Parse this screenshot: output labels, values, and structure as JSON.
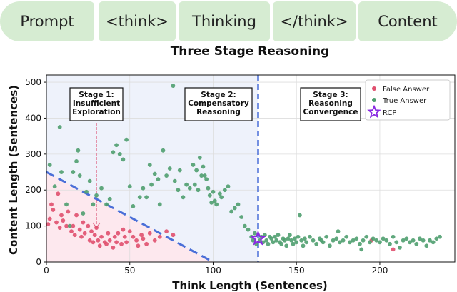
{
  "pipeline": {
    "stages": [
      "Prompt",
      "<think>",
      "Thinking",
      "</think>",
      "Content"
    ]
  },
  "colors": {
    "pill_bg": "#d6ecd2",
    "false_answer": "#e0506e",
    "true_answer": "#4f9e6f",
    "rcp": "#8a2be2",
    "dashed_line": "#4a6fd8",
    "region_low": "#fde8ee",
    "region_mid": "#eef2fb"
  },
  "chart_data": {
    "type": "scatter",
    "title": "Three Stage Reasoning",
    "xlabel": "Think Length (Sentences)",
    "ylabel": "Content Length (Sentences)",
    "xlim": [
      0,
      245
    ],
    "ylim": [
      0,
      520
    ],
    "x_ticks": [
      0,
      50,
      100,
      150,
      200
    ],
    "y_ticks": [
      0,
      100,
      200,
      300,
      400,
      500
    ],
    "grid": true,
    "legend_position": "top-right",
    "legend": [
      "False Answer",
      "True Answer",
      "RCP"
    ],
    "stages": [
      {
        "lines": [
          "Stage 1:",
          "Insufficient",
          "Exploration"
        ]
      },
      {
        "lines": [
          "Stage 2:",
          "Compensatory",
          "Reasoning"
        ]
      },
      {
        "lines": [
          "Stage 3:",
          "Reasoning",
          "Convergence"
        ]
      }
    ],
    "rcp_point": {
      "x": 127,
      "y": 65
    },
    "vertical_line_x": 127,
    "diagonal_line": {
      "x": [
        0,
        100
      ],
      "y": [
        250,
        0
      ]
    },
    "series": [
      {
        "name": "False Answer",
        "points": [
          [
            1,
            105
          ],
          [
            2,
            120
          ],
          [
            3,
            160
          ],
          [
            4,
            145
          ],
          [
            6,
            110
          ],
          [
            7,
            190
          ],
          [
            8,
            95
          ],
          [
            9,
            130
          ],
          [
            10,
            115
          ],
          [
            12,
            100
          ],
          [
            13,
            140
          ],
          [
            15,
            85
          ],
          [
            16,
            100
          ],
          [
            17,
            75
          ],
          [
            18,
            130
          ],
          [
            20,
            90
          ],
          [
            21,
            70
          ],
          [
            22,
            110
          ],
          [
            23,
            80
          ],
          [
            25,
            100
          ],
          [
            26,
            60
          ],
          [
            27,
            85
          ],
          [
            28,
            55
          ],
          [
            29,
            75
          ],
          [
            30,
            95
          ],
          [
            31,
            60
          ],
          [
            32,
            45
          ],
          [
            33,
            70
          ],
          [
            35,
            55
          ],
          [
            36,
            50
          ],
          [
            37,
            80
          ],
          [
            38,
            60
          ],
          [
            40,
            40
          ],
          [
            41,
            70
          ],
          [
            42,
            55
          ],
          [
            43,
            80
          ],
          [
            45,
            50
          ],
          [
            46,
            90
          ],
          [
            47,
            70
          ],
          [
            48,
            55
          ],
          [
            50,
            85
          ],
          [
            52,
            70
          ],
          [
            54,
            60
          ],
          [
            55,
            45
          ],
          [
            57,
            75
          ],
          [
            58,
            65
          ],
          [
            60,
            50
          ],
          [
            62,
            80
          ],
          [
            65,
            60
          ],
          [
            68,
            70
          ],
          [
            72,
            85
          ],
          [
            76,
            75
          ],
          [
            195,
            60
          ],
          [
            208,
            35
          ]
        ]
      },
      {
        "name": "True Answer",
        "points": [
          [
            2,
            270
          ],
          [
            5,
            210
          ],
          [
            8,
            375
          ],
          [
            9,
            250
          ],
          [
            12,
            160
          ],
          [
            14,
            100
          ],
          [
            16,
            250
          ],
          [
            18,
            280
          ],
          [
            19,
            310
          ],
          [
            20,
            240
          ],
          [
            22,
            135
          ],
          [
            24,
            195
          ],
          [
            26,
            225
          ],
          [
            28,
            160
          ],
          [
            30,
            185
          ],
          [
            33,
            205
          ],
          [
            36,
            160
          ],
          [
            38,
            175
          ],
          [
            40,
            305
          ],
          [
            42,
            325
          ],
          [
            44,
            300
          ],
          [
            46,
            285
          ],
          [
            48,
            340
          ],
          [
            50,
            210
          ],
          [
            52,
            155
          ],
          [
            56,
            180
          ],
          [
            58,
            205
          ],
          [
            60,
            180
          ],
          [
            62,
            270
          ],
          [
            63,
            215
          ],
          [
            65,
            245
          ],
          [
            67,
            230
          ],
          [
            68,
            160
          ],
          [
            70,
            310
          ],
          [
            72,
            240
          ],
          [
            74,
            260
          ],
          [
            76,
            490
          ],
          [
            77,
            225
          ],
          [
            79,
            200
          ],
          [
            80,
            255
          ],
          [
            82,
            180
          ],
          [
            84,
            215
          ],
          [
            86,
            205
          ],
          [
            88,
            270
          ],
          [
            89,
            215
          ],
          [
            90,
            255
          ],
          [
            91,
            200
          ],
          [
            92,
            290
          ],
          [
            93,
            240
          ],
          [
            94,
            265
          ],
          [
            95,
            240
          ],
          [
            96,
            230
          ],
          [
            97,
            205
          ],
          [
            98,
            185
          ],
          [
            99,
            165
          ],
          [
            100,
            195
          ],
          [
            101,
            170
          ],
          [
            102,
            160
          ],
          [
            104,
            190
          ],
          [
            105,
            180
          ],
          [
            107,
            200
          ],
          [
            109,
            210
          ],
          [
            111,
            140
          ],
          [
            113,
            150
          ],
          [
            115,
            160
          ],
          [
            117,
            125
          ],
          [
            119,
            100
          ],
          [
            121,
            90
          ],
          [
            123,
            70
          ],
          [
            124,
            60
          ],
          [
            125,
            80
          ],
          [
            126,
            50
          ],
          [
            128,
            60
          ],
          [
            129,
            70
          ],
          [
            130,
            55
          ],
          [
            131,
            75
          ],
          [
            132,
            60
          ],
          [
            133,
            50
          ],
          [
            134,
            70
          ],
          [
            135,
            65
          ],
          [
            136,
            55
          ],
          [
            137,
            70
          ],
          [
            138,
            60
          ],
          [
            139,
            75
          ],
          [
            140,
            55
          ],
          [
            141,
            50
          ],
          [
            142,
            65
          ],
          [
            143,
            60
          ],
          [
            144,
            45
          ],
          [
            145,
            65
          ],
          [
            146,
            75
          ],
          [
            147,
            60
          ],
          [
            148,
            50
          ],
          [
            149,
            65
          ],
          [
            150,
            55
          ],
          [
            151,
            70
          ],
          [
            152,
            130
          ],
          [
            153,
            60
          ],
          [
            154,
            45
          ],
          [
            155,
            65
          ],
          [
            156,
            55
          ],
          [
            158,
            70
          ],
          [
            160,
            60
          ],
          [
            162,
            50
          ],
          [
            164,
            65
          ],
          [
            165,
            60
          ],
          [
            166,
            55
          ],
          [
            168,
            70
          ],
          [
            170,
            45
          ],
          [
            172,
            60
          ],
          [
            174,
            65
          ],
          [
            175,
            85
          ],
          [
            176,
            55
          ],
          [
            178,
            60
          ],
          [
            180,
            70
          ],
          [
            182,
            55
          ],
          [
            184,
            60
          ],
          [
            186,
            65
          ],
          [
            188,
            50
          ],
          [
            189,
            35
          ],
          [
            190,
            60
          ],
          [
            192,
            70
          ],
          [
            194,
            55
          ],
          [
            196,
            65
          ],
          [
            198,
            60
          ],
          [
            200,
            55
          ],
          [
            202,
            65
          ],
          [
            204,
            60
          ],
          [
            206,
            50
          ],
          [
            208,
            70
          ],
          [
            210,
            55
          ],
          [
            212,
            40
          ],
          [
            214,
            60
          ],
          [
            216,
            65
          ],
          [
            218,
            55
          ],
          [
            220,
            60
          ],
          [
            222,
            50
          ],
          [
            224,
            65
          ],
          [
            226,
            60
          ],
          [
            228,
            45
          ],
          [
            230,
            60
          ],
          [
            232,
            55
          ],
          [
            234,
            65
          ],
          [
            236,
            70
          ]
        ]
      }
    ]
  }
}
